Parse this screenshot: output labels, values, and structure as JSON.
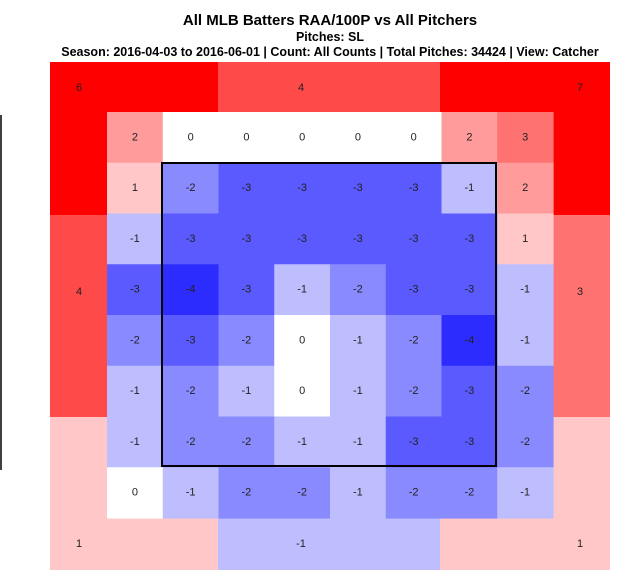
{
  "header": {
    "title": "All MLB Batters RAA/100P vs All Pitchers",
    "pitches": "Pitches: SL",
    "subtitle": "Season: 2016-04-03 to 2016-06-01 | Count: All Counts | Total Pitches: 34424 | View: Catcher"
  },
  "chart_data": {
    "type": "heatmap",
    "metric": "RAA/100P",
    "colors": {
      "low": "#0000ff",
      "mid": "#ffffff",
      "high": "#ff0000"
    },
    "color_scale_range": [
      -5,
      6
    ],
    "strike_zone_border": "#000000",
    "outer_regions": [
      {
        "name": "top-left",
        "value": 6
      },
      {
        "name": "top",
        "value": 4
      },
      {
        "name": "top-right",
        "value": 7
      },
      {
        "name": "left",
        "value": 4
      },
      {
        "name": "right",
        "value": 3
      },
      {
        "name": "bottom-left",
        "value": 1
      },
      {
        "name": "bottom",
        "value": -1
      },
      {
        "name": "bottom-right",
        "value": 1
      }
    ],
    "grid": [
      [
        2,
        0,
        0,
        0,
        0,
        0,
        2,
        3
      ],
      [
        1,
        -2,
        -3,
        -3,
        -3,
        -3,
        -1,
        2
      ],
      [
        -1,
        -3,
        -3,
        -3,
        -3,
        -3,
        -3,
        1
      ],
      [
        -3,
        -4,
        -3,
        -1,
        -2,
        -3,
        -3,
        -1
      ],
      [
        -2,
        -3,
        -2,
        0,
        -1,
        -2,
        -4,
        -1
      ],
      [
        -1,
        -2,
        -1,
        0,
        -1,
        -2,
        -3,
        -2
      ],
      [
        -1,
        -2,
        -2,
        -1,
        -1,
        -3,
        -3,
        -2
      ],
      [
        0,
        -1,
        -2,
        -2,
        -1,
        -2,
        -2,
        -1
      ]
    ]
  }
}
